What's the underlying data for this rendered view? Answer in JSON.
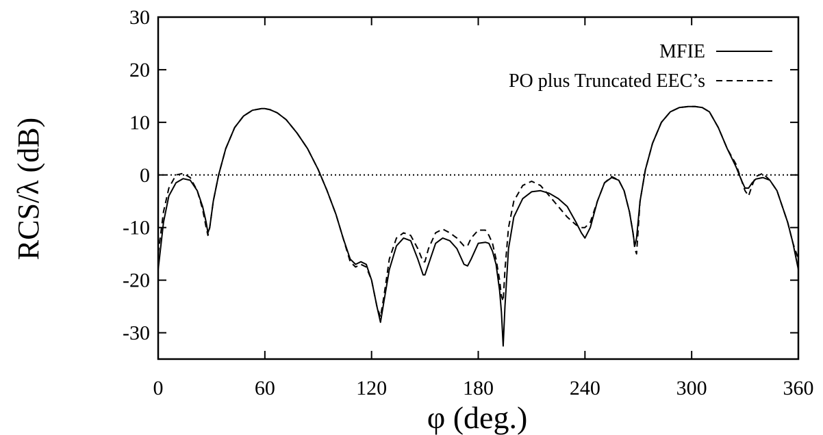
{
  "chart_data": {
    "type": "line",
    "title": "",
    "xlabel": "φ (deg.)",
    "ylabel": "RCS/λ (dB)",
    "xlim": [
      0,
      360
    ],
    "ylim": [
      -35,
      30
    ],
    "xticks": [
      0,
      60,
      120,
      180,
      240,
      300,
      360
    ],
    "yticks": [
      30,
      20,
      10,
      0,
      -10,
      -20,
      -30
    ],
    "grid": false,
    "legend_position": "top-right",
    "reference_line": {
      "y": 0,
      "style": "dotted"
    },
    "series": [
      {
        "name": "MFIE",
        "style": "solid",
        "x": [
          0,
          3,
          6,
          10,
          14,
          18,
          22,
          25,
          27,
          28,
          29,
          31,
          34,
          38,
          43,
          48,
          53,
          58,
          60,
          63,
          67,
          72,
          78,
          84,
          90,
          95,
          100,
          104,
          108,
          111,
          114,
          117,
          120,
          123,
          125,
          127,
          130,
          134,
          138,
          142,
          146,
          149,
          150,
          152,
          156,
          160,
          164,
          168,
          172,
          174,
          176,
          180,
          184,
          186,
          188,
          190,
          192,
          193,
          194,
          195,
          197,
          200,
          205,
          210,
          215,
          220,
          225,
          230,
          235,
          238,
          240,
          243,
          247,
          251,
          255,
          259,
          262,
          265,
          267,
          268,
          269,
          271,
          274,
          278,
          283,
          288,
          293,
          298,
          302,
          306,
          310,
          315,
          320,
          325,
          328,
          330,
          332,
          334,
          336,
          340,
          344,
          348,
          351,
          354,
          357,
          360
        ],
        "y": [
          -18,
          -9,
          -4,
          -1.5,
          -0.7,
          -1,
          -3,
          -6,
          -9,
          -11,
          -10,
          -5,
          0,
          5,
          9,
          11.2,
          12.3,
          12.6,
          12.6,
          12.4,
          11.8,
          10.5,
          8,
          5,
          1,
          -3,
          -7.5,
          -12,
          -16,
          -17,
          -16.5,
          -17,
          -20,
          -25,
          -28,
          -24,
          -18,
          -13.5,
          -12,
          -12.5,
          -16,
          -19,
          -19,
          -17,
          -13,
          -12,
          -12.5,
          -14,
          -17,
          -17.3,
          -16,
          -13,
          -12.8,
          -13,
          -14.5,
          -17,
          -22,
          -26,
          -32.5,
          -25,
          -14,
          -8,
          -4.5,
          -3.2,
          -3,
          -3.5,
          -4.5,
          -6,
          -9,
          -11,
          -12,
          -10,
          -5,
          -1.5,
          -0.5,
          -1,
          -3,
          -7,
          -11,
          -13.5,
          -12,
          -5,
          1,
          6,
          10,
          12,
          12.8,
          13,
          13,
          12.8,
          12,
          9,
          5,
          1.5,
          -1,
          -2.5,
          -2.5,
          -1.5,
          -0.8,
          -0.5,
          -1,
          -3,
          -6,
          -9,
          -13,
          -18
        ]
      },
      {
        "name": "PO plus Truncated EEC’s",
        "style": "dashed",
        "x": [
          0,
          3,
          6,
          10,
          14,
          18,
          22,
          25,
          27,
          28,
          29,
          31,
          34,
          38,
          43,
          48,
          53,
          58,
          60,
          63,
          67,
          72,
          78,
          84,
          90,
          95,
          100,
          104,
          108,
          111,
          114,
          117,
          120,
          123,
          125,
          127,
          130,
          134,
          138,
          142,
          146,
          149,
          150,
          152,
          156,
          160,
          164,
          168,
          172,
          174,
          176,
          180,
          184,
          186,
          188,
          190,
          192,
          193,
          194,
          195,
          197,
          200,
          205,
          210,
          215,
          220,
          225,
          230,
          235,
          238,
          240,
          243,
          247,
          251,
          255,
          259,
          262,
          265,
          267,
          268,
          269,
          271,
          274,
          278,
          283,
          288,
          293,
          298,
          302,
          306,
          310,
          315,
          320,
          325,
          328,
          330,
          332,
          334,
          336,
          340,
          344,
          348,
          351,
          354,
          357,
          360
        ],
        "y": [
          -15,
          -7,
          -2.5,
          0,
          0.3,
          -0.5,
          -3,
          -6.5,
          -10,
          -11.5,
          -10,
          -5,
          0,
          5,
          9,
          11.2,
          12.3,
          12.6,
          12.6,
          12.4,
          11.8,
          10.5,
          8,
          5,
          1,
          -3,
          -7.5,
          -12,
          -16.5,
          -17.5,
          -17,
          -17.5,
          -20,
          -25,
          -27,
          -23,
          -16,
          -12,
          -11,
          -11.5,
          -14,
          -16.5,
          -16.5,
          -14,
          -11,
          -10.3,
          -11,
          -12,
          -13.5,
          -13.5,
          -12,
          -10.5,
          -10.5,
          -11.5,
          -13,
          -16,
          -20,
          -23,
          -24,
          -18,
          -10,
          -5,
          -2,
          -1.2,
          -2,
          -4,
          -6,
          -8,
          -9.5,
          -10,
          -10,
          -9,
          -5,
          -1.5,
          -0.3,
          -1,
          -3,
          -7,
          -11,
          -14,
          -15,
          -5,
          1,
          6,
          10,
          12,
          12.8,
          13,
          13,
          12.8,
          12,
          9,
          5,
          2,
          -1,
          -3,
          -4,
          -2,
          -0.3,
          0.3,
          -1,
          -3,
          -6,
          -9,
          -13,
          -16
        ]
      }
    ]
  }
}
